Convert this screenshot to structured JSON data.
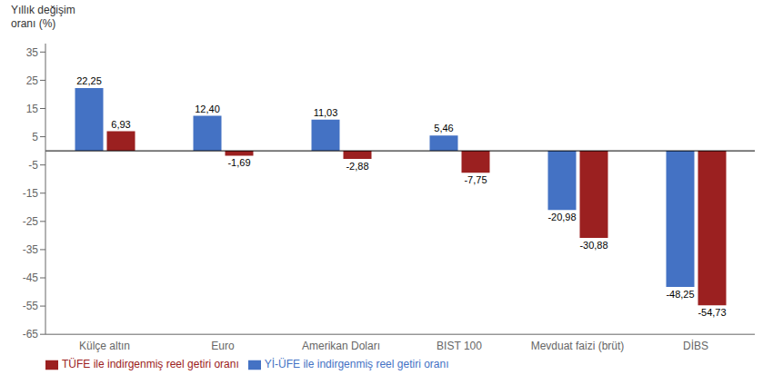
{
  "chart_data": {
    "type": "bar",
    "ylabel": [
      "Yıllık değişim",
      "oranı (%)"
    ],
    "categories": [
      "Külçe altın",
      "Euro",
      "Amerikan Doları",
      "BIST 100",
      "Mevduat faizi (brüt)",
      "DİBS"
    ],
    "series": [
      {
        "name": "Yİ-ÜFE ile indirgenmiş reel getiri oranı",
        "color": "#4472c4",
        "values": [
          22.25,
          12.4,
          11.03,
          5.46,
          -20.98,
          -48.25
        ],
        "value_labels": [
          "22,25",
          "12,40",
          "11,03",
          "5,46",
          "-20,98",
          "-48,25"
        ]
      },
      {
        "name": "TÜFE ile indirgenmiş reel getiri oranı",
        "color": "#9b2020",
        "values": [
          6.93,
          -1.69,
          -2.88,
          -7.75,
          -30.88,
          -54.73
        ],
        "value_labels": [
          "6,93",
          "-1,69",
          "-2,88",
          "-7,75",
          "-30,88",
          "-54,73"
        ]
      }
    ],
    "ylim": [
      -65,
      38
    ],
    "yticks": [
      35,
      25,
      15,
      5,
      -5,
      -15,
      -25,
      -35,
      -45,
      -55,
      -65
    ],
    "grid": false,
    "legend": "bottom",
    "data_labels": true
  }
}
